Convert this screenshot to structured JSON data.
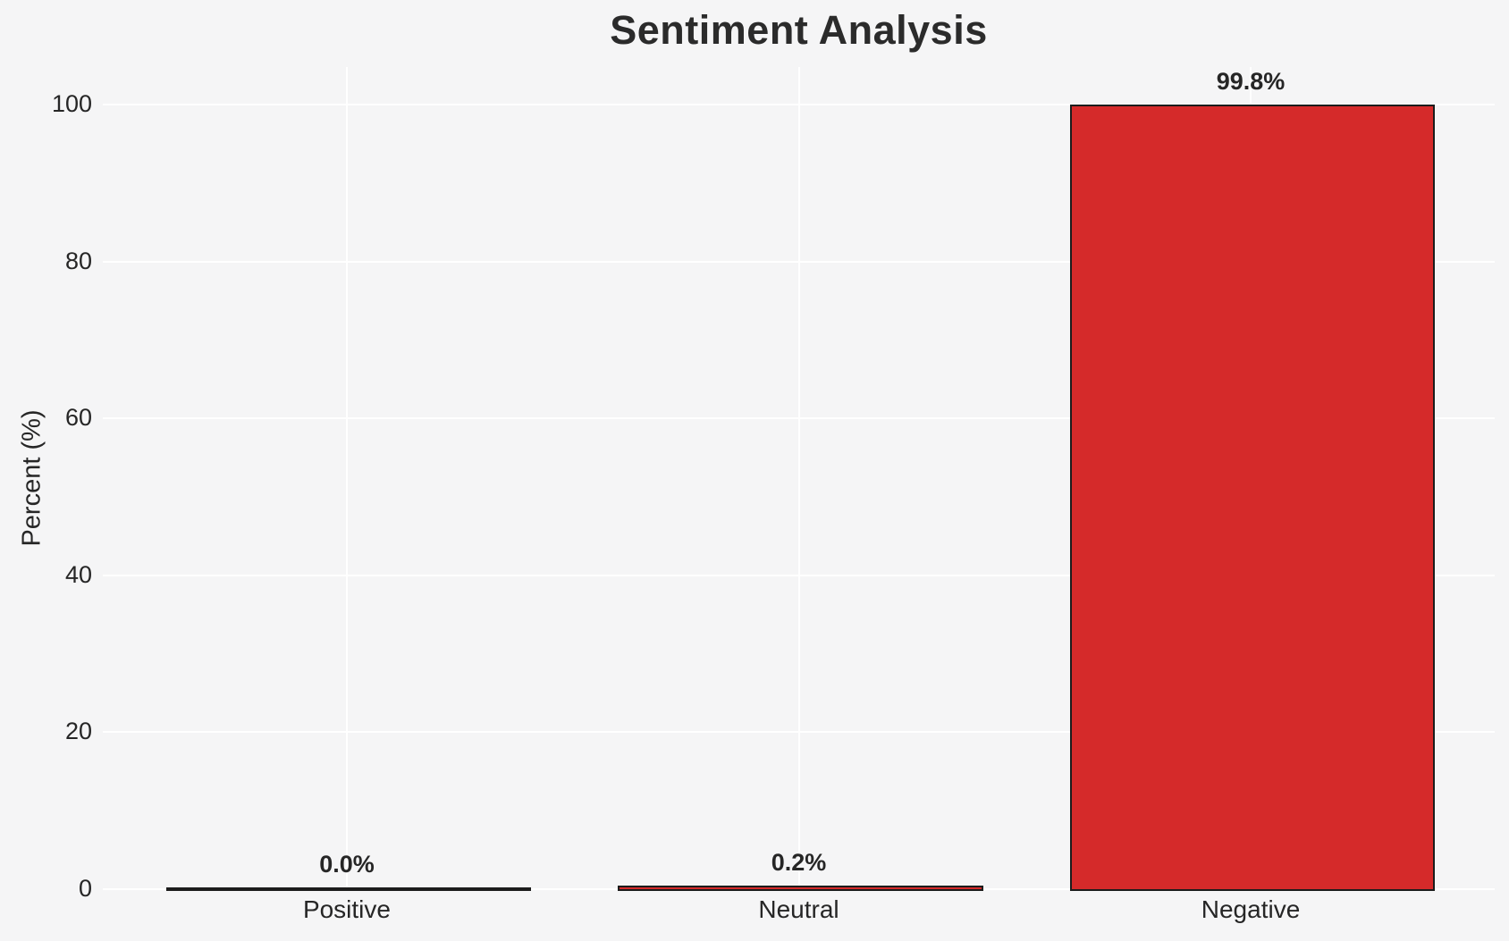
{
  "chart_data": {
    "type": "bar",
    "title": "Sentiment Analysis",
    "categories": [
      "Positive",
      "Neutral",
      "Negative"
    ],
    "values": [
      0.0,
      0.2,
      99.8
    ],
    "value_labels": [
      "0.0%",
      "0.2%",
      "99.8%"
    ],
    "xlabel": "",
    "ylabel": "Percent (%)",
    "yticks": [
      "0",
      "20",
      "40",
      "60",
      "80",
      "100"
    ],
    "ytick_values": [
      0,
      20,
      40,
      60,
      80,
      100
    ],
    "ylim": [
      0,
      104.8
    ],
    "xlim": [
      -0.54,
      2.54
    ],
    "bar_width": 0.8,
    "grid": true,
    "legend_position": "none",
    "colors": {
      "bar_fill": "#d52a2a",
      "bar_edge": "#1c1c1c",
      "background": "#f5f5f6",
      "gridline": "#ffffff",
      "text": "#262626"
    }
  }
}
